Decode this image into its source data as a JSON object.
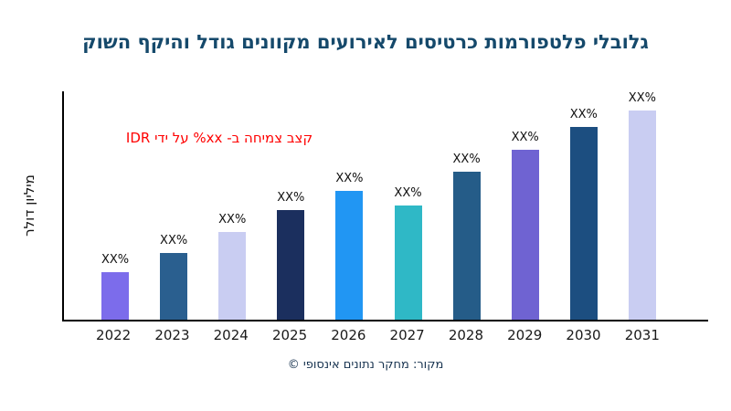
{
  "page": {
    "title": "גלובלי פלטפורמות כרטיסים לאירועים מקוונים גודל והיקף השוק",
    "source_caption": "מקור: מחקר נתונים אינסופי ©"
  },
  "colors": {
    "title": "#15496B",
    "annotation": "#FF0000",
    "axis": "#000000",
    "tick_text": "#1a1a1a",
    "source_text": "#16324F"
  },
  "chart_data": {
    "type": "bar",
    "title": "גלובלי פלטפורמות כרטיסים לאירועים מקוונים גודל והיקף השוק",
    "ylabel": "מיליון דולר",
    "xlabel": "",
    "annotation": "קצב צמיחה ב- xx% על ידי IDR",
    "categories": [
      "2022",
      "2023",
      "2024",
      "2025",
      "2026",
      "2027",
      "2028",
      "2029",
      "2030",
      "2031"
    ],
    "bar_labels": [
      "XX%",
      "XX%",
      "XX%",
      "XX%",
      "XX%",
      "XX%",
      "XX%",
      "XX%",
      "XX%",
      "XX%"
    ],
    "values_relative": [
      22,
      31,
      41,
      51,
      60,
      53,
      69,
      79,
      90,
      100
    ],
    "bar_colors": [
      "#7C6CEB",
      "#2A5F8F",
      "#C9CDF2",
      "#1B2F5E",
      "#2196F3",
      "#2FB8C6",
      "#255C88",
      "#6F63D2",
      "#1C4E80",
      "#C9CDF2"
    ],
    "grid": false,
    "legend": false,
    "ylim": null,
    "y_axis_tick_labels_visible": false
  }
}
